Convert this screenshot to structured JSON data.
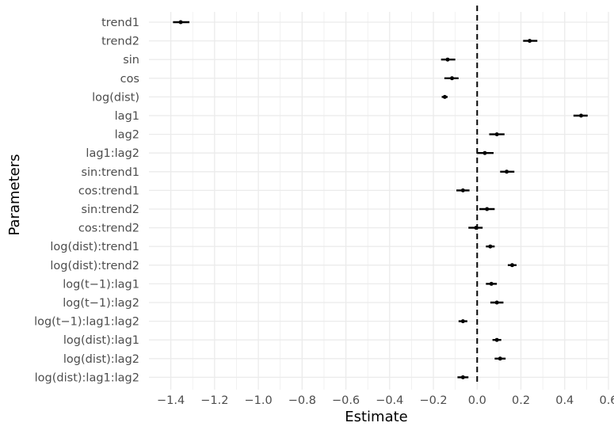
{
  "chart_data": {
    "type": "scatter",
    "subtype": "coefficient-plot",
    "xlabel": "Estimate",
    "ylabel": "Parameters",
    "xlim": [
      -1.5,
      0.6
    ],
    "xticks": [
      -1.4,
      -1.2,
      -1.0,
      -0.8,
      -0.6,
      -0.4,
      -0.2,
      0.0,
      0.2,
      0.4,
      0.6
    ],
    "xtick_labels": [
      "−1.4",
      "−1.2",
      "−1.0",
      "−0.8",
      "−0.6",
      "−0.4",
      "−0.2",
      "0.0",
      "0.2",
      "0.4",
      "0.6"
    ],
    "reference_line": {
      "x": 0,
      "style": "dashed",
      "color": "#000000"
    },
    "grid": true,
    "point_color": "#000000",
    "grid_color": "#ebebeb",
    "parameters": [
      {
        "name": "trend1",
        "estimate": -1.355,
        "lower": -1.39,
        "upper": -1.315
      },
      {
        "name": "trend2",
        "estimate": 0.24,
        "lower": 0.21,
        "upper": 0.275
      },
      {
        "name": "sin",
        "estimate": -0.135,
        "lower": -0.165,
        "upper": -0.1
      },
      {
        "name": "cos",
        "estimate": -0.115,
        "lower": -0.15,
        "upper": -0.085
      },
      {
        "name": "log(dist)",
        "estimate": -0.148,
        "lower": -0.162,
        "upper": -0.135
      },
      {
        "name": "lag1",
        "estimate": 0.475,
        "lower": 0.44,
        "upper": 0.505
      },
      {
        "name": "lag2",
        "estimate": 0.09,
        "lower": 0.055,
        "upper": 0.125
      },
      {
        "name": "lag1:lag2",
        "estimate": 0.035,
        "lower": 0.0,
        "upper": 0.075
      },
      {
        "name": "sin:trend1",
        "estimate": 0.135,
        "lower": 0.105,
        "upper": 0.17
      },
      {
        "name": "cos:trend1",
        "estimate": -0.065,
        "lower": -0.095,
        "upper": -0.035
      },
      {
        "name": "sin:trend2",
        "estimate": 0.045,
        "lower": 0.01,
        "upper": 0.08
      },
      {
        "name": "cos:trend2",
        "estimate": -0.005,
        "lower": -0.04,
        "upper": 0.025
      },
      {
        "name": "log(dist):trend1",
        "estimate": 0.06,
        "lower": 0.04,
        "upper": 0.08
      },
      {
        "name": "log(dist):trend2",
        "estimate": 0.16,
        "lower": 0.14,
        "upper": 0.18
      },
      {
        "name": "log(t−1):lag1",
        "estimate": 0.065,
        "lower": 0.04,
        "upper": 0.09
      },
      {
        "name": "log(t−1):lag2",
        "estimate": 0.09,
        "lower": 0.06,
        "upper": 0.12
      },
      {
        "name": "log(t−1):lag1:lag2",
        "estimate": -0.065,
        "lower": -0.085,
        "upper": -0.045
      },
      {
        "name": "log(dist):lag1",
        "estimate": 0.09,
        "lower": 0.07,
        "upper": 0.11
      },
      {
        "name": "log(dist):lag2",
        "estimate": 0.105,
        "lower": 0.08,
        "upper": 0.13
      },
      {
        "name": "log(dist):lag1:lag2",
        "estimate": -0.065,
        "lower": -0.09,
        "upper": -0.04
      }
    ]
  }
}
